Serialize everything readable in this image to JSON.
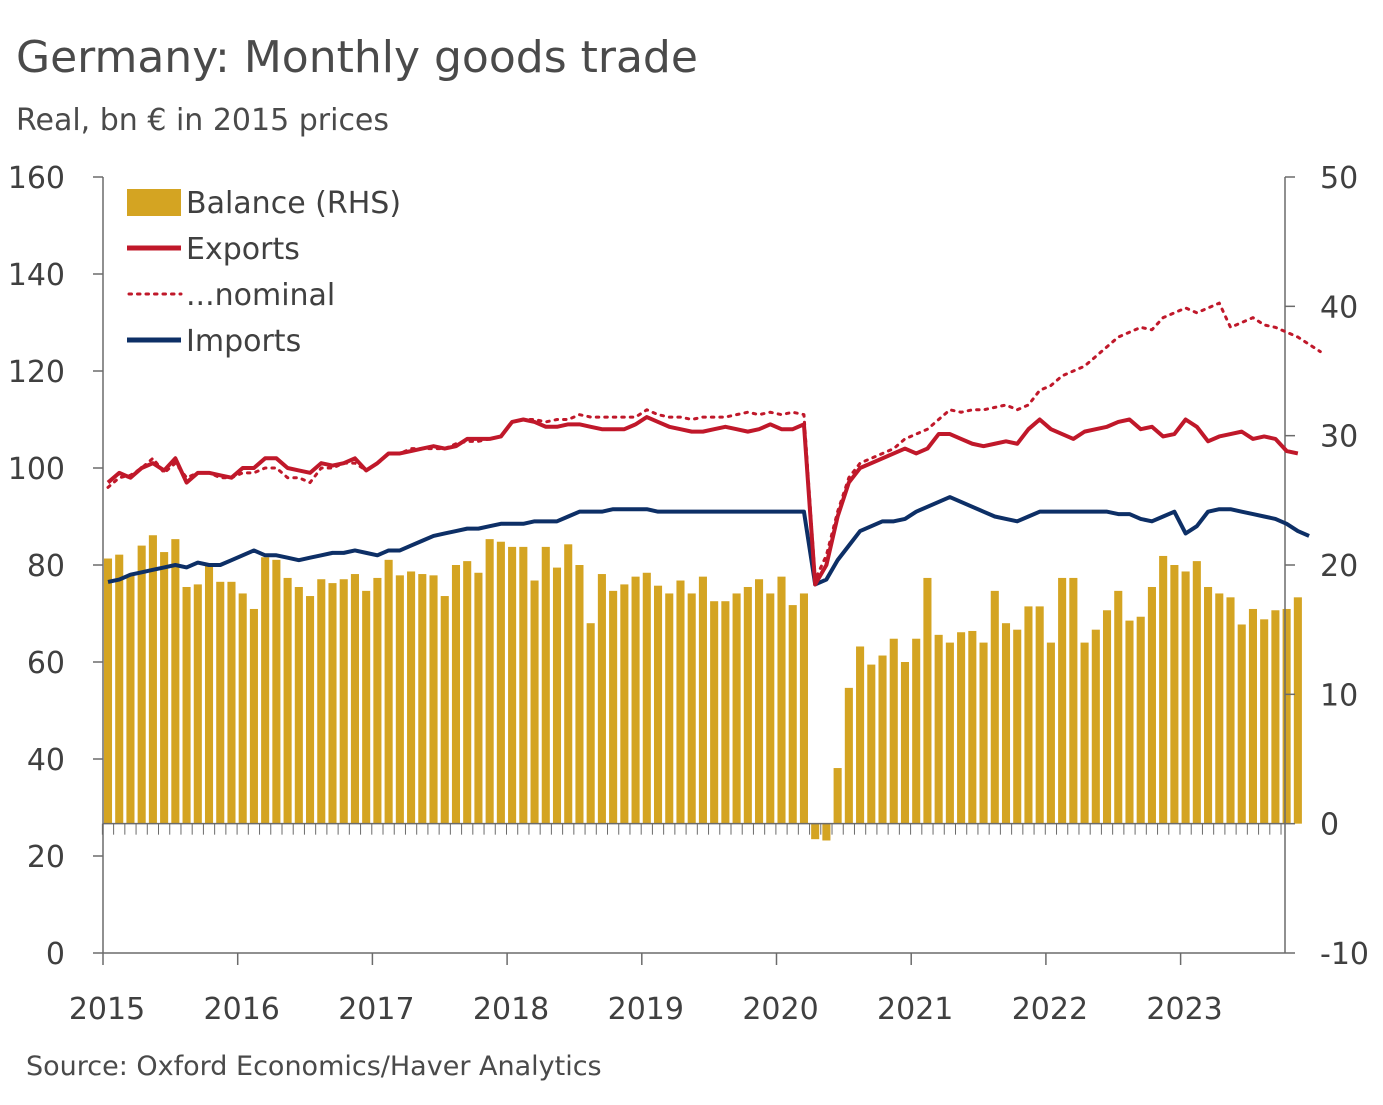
{
  "chart_data": {
    "type": "bar+line",
    "title": "Germany: Monthly goods trade",
    "subtitle": "Real, bn € in 2015 prices",
    "source": "Source: Oxford Economics/Haver Analytics",
    "x_start": "2015-01",
    "x_end": "2023-10",
    "x_tick_labels": [
      "2015",
      "2016",
      "2017",
      "2018",
      "2019",
      "2020",
      "2021",
      "2022",
      "2023"
    ],
    "y_left": {
      "range": [
        0,
        160
      ],
      "ticks": [
        "0",
        "20",
        "40",
        "60",
        "80",
        "100",
        "120",
        "140",
        "160"
      ]
    },
    "y_right": {
      "range": [
        -10,
        50
      ],
      "ticks": [
        "-10",
        "0",
        "10",
        "20",
        "30",
        "40",
        "50"
      ]
    },
    "legend": {
      "position": "top-left",
      "items": [
        {
          "label": "Balance (RHS)",
          "kind": "bar",
          "color": "#d4a422"
        },
        {
          "label": "Exports",
          "kind": "line",
          "color": "#c0182a"
        },
        {
          "label": "...nominal",
          "kind": "dotted",
          "color": "#c0182a"
        },
        {
          "label": "Imports",
          "kind": "line",
          "color": "#0d2f66"
        }
      ]
    },
    "series": [
      {
        "name": "Balance (RHS)",
        "axis": "right",
        "color": "#d4a422",
        "values": [
          20.5,
          20.8,
          19.2,
          21.5,
          22.3,
          21.0,
          22.0,
          18.3,
          18.5,
          20.0,
          18.7,
          18.7,
          17.8,
          16.6,
          20.6,
          20.4,
          19.0,
          18.3,
          17.6,
          18.9,
          18.6,
          18.9,
          19.3,
          18.0,
          19.0,
          20.4,
          19.2,
          19.5,
          19.3,
          19.2,
          17.6,
          20.0,
          20.3,
          19.4,
          22.0,
          21.8,
          21.4,
          21.4,
          18.8,
          21.4,
          19.8,
          21.6,
          20.0,
          15.5,
          19.3,
          18.0,
          18.5,
          19.1,
          19.4,
          18.4,
          17.8,
          18.8,
          17.8,
          19.1,
          17.2,
          17.2,
          17.8,
          18.3,
          18.9,
          17.8,
          19.1,
          16.9,
          17.8,
          -1.2,
          -1.3,
          4.3,
          10.5,
          13.7,
          12.3,
          13.0,
          14.3,
          12.5,
          14.3,
          19.0,
          14.6,
          14.0,
          14.8,
          14.9,
          14.0,
          18.0,
          15.5,
          15.0,
          16.8,
          16.8,
          14.0,
          19.0,
          19.0,
          14.0,
          15.0,
          16.5,
          18.0,
          15.7,
          16.0,
          18.3,
          20.7,
          20.0,
          19.5,
          20.3,
          18.3,
          17.8,
          17.5,
          15.4,
          16.6,
          15.8,
          16.5,
          16.6,
          17.5
        ]
      },
      {
        "name": "Exports",
        "axis": "left",
        "color": "#c0182a",
        "values": [
          97,
          99,
          98,
          100,
          101,
          99.5,
          102,
          97,
          99,
          99,
          98.5,
          98,
          100,
          100,
          102,
          102,
          100,
          99.5,
          99,
          101,
          100.5,
          101,
          102,
          99.5,
          101,
          103,
          103,
          103.5,
          104,
          104.5,
          104,
          104.5,
          106,
          106,
          106,
          106.5,
          109.5,
          110,
          109.5,
          108.5,
          108.5,
          109,
          109,
          108.5,
          108,
          108,
          108,
          109,
          110.5,
          109.5,
          108.5,
          108,
          107.5,
          107.5,
          108,
          108.5,
          108,
          107.5,
          108,
          109,
          108,
          108,
          109,
          76,
          80,
          90,
          97,
          100,
          101,
          102,
          103,
          104,
          103,
          104,
          107,
          107,
          106,
          105,
          104.5,
          105,
          105.5,
          105,
          108,
          110,
          108,
          107,
          106,
          107.5,
          108,
          108.5,
          109.5,
          110,
          108,
          108.5,
          106.5,
          107,
          110,
          108.5,
          105.5,
          106.5,
          107,
          107.5,
          106,
          106.5,
          106,
          103.5,
          103
        ]
      },
      {
        "name": "...nominal",
        "axis": "left",
        "color": "#c0182a",
        "values": [
          96,
          98,
          98.5,
          100,
          102,
          99,
          101,
          98,
          99,
          99,
          98,
          98,
          99,
          99,
          100,
          100,
          98,
          98,
          97,
          100,
          100,
          101,
          101,
          99.5,
          101,
          103,
          103,
          104,
          104,
          104,
          104,
          105,
          105.5,
          105.5,
          106,
          106.5,
          109.5,
          110,
          110,
          109.5,
          110,
          110,
          111,
          110.5,
          110.5,
          110.5,
          110.5,
          110.5,
          112,
          111,
          110.5,
          110.5,
          110,
          110.5,
          110.5,
          110.5,
          111,
          111.5,
          111,
          111.5,
          111,
          111.5,
          111,
          77,
          82,
          91,
          98,
          101,
          102,
          103,
          104,
          106,
          107,
          108,
          110,
          112,
          111.5,
          112,
          112,
          112.5,
          113,
          112,
          113,
          116,
          117,
          119,
          120,
          121,
          123,
          125,
          127,
          128,
          129,
          128.5,
          131,
          132,
          133,
          132,
          133,
          134,
          129,
          130,
          131,
          129.5,
          129,
          128,
          127,
          125.5,
          124
        ]
      },
      {
        "name": "Imports",
        "axis": "left",
        "color": "#0d2f66",
        "values": [
          76.5,
          77,
          78,
          78.5,
          79,
          79.5,
          80,
          79.5,
          80.5,
          80,
          80,
          81,
          82,
          83,
          82,
          82,
          81.5,
          81,
          81.5,
          82,
          82.5,
          82.5,
          83,
          82.5,
          82,
          83,
          83,
          84,
          85,
          86,
          86.5,
          87,
          87.5,
          87.5,
          88,
          88.5,
          88.5,
          88.5,
          89,
          89,
          89,
          90,
          91,
          91,
          91,
          91.5,
          91.5,
          91.5,
          91.5,
          91,
          91,
          91,
          91,
          91,
          91,
          91,
          91,
          91,
          91,
          91,
          91,
          91,
          91,
          76,
          77,
          81,
          84,
          87,
          88,
          89,
          89,
          89.5,
          91,
          92,
          93,
          94,
          93,
          92,
          91,
          90,
          89.5,
          89,
          90,
          91,
          91,
          91,
          91,
          91,
          91,
          91,
          90.5,
          90.5,
          89.5,
          89,
          90,
          91,
          86.5,
          88,
          91,
          91.5,
          91.5,
          91,
          90.5,
          90,
          89.5,
          88.5,
          87,
          86
        ]
      }
    ]
  }
}
